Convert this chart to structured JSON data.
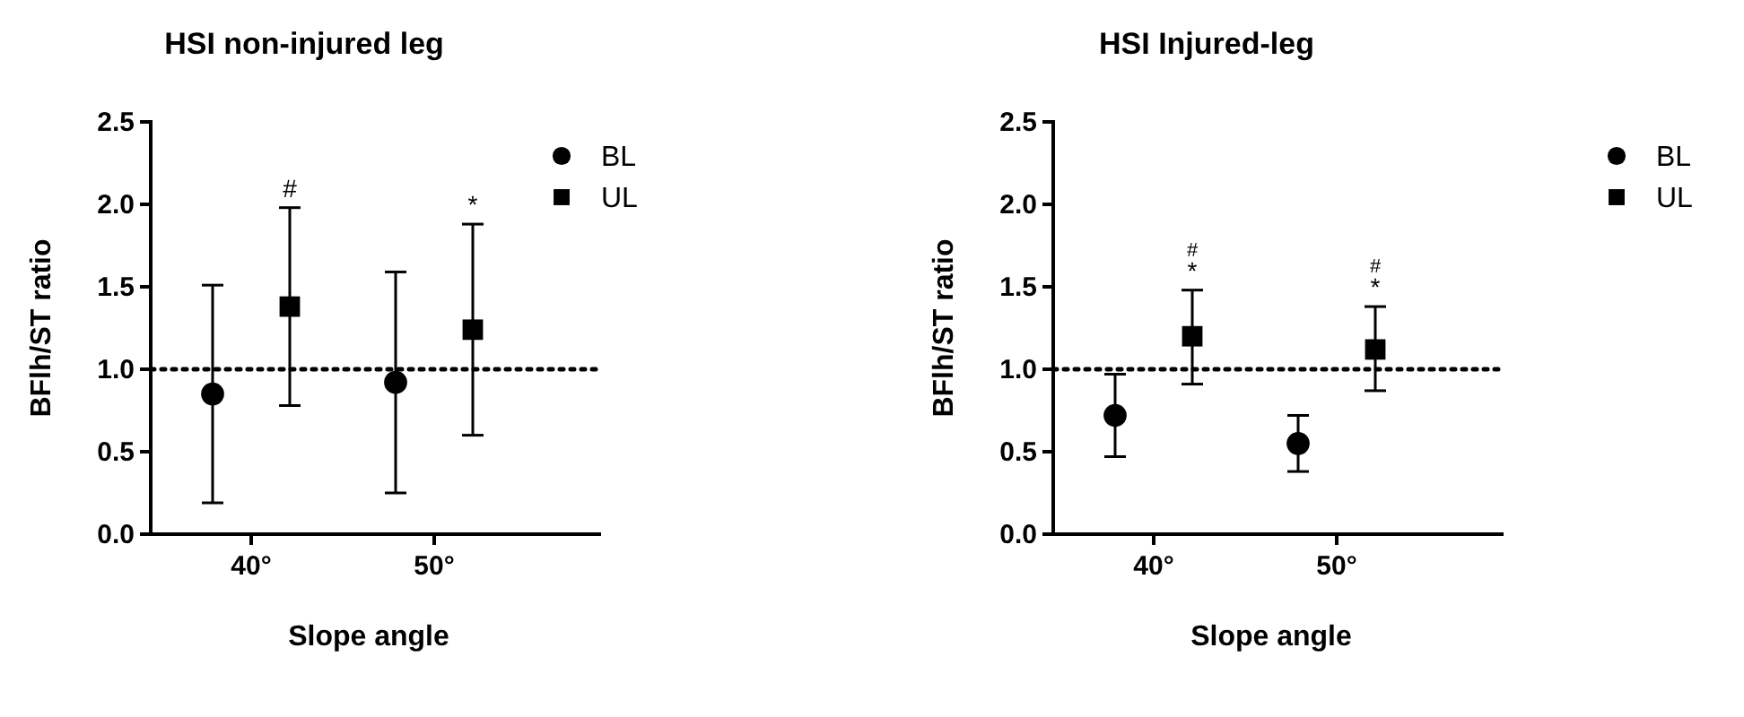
{
  "chart_data": [
    {
      "type": "scatter",
      "title": "HSI non-injured leg",
      "xlabel": "Slope angle",
      "ylabel": "BFlh/ST ratio",
      "categories": [
        "40°",
        "50°"
      ],
      "series": [
        {
          "name": "BL",
          "color": "#000000",
          "marker": "circle",
          "values": [
            0.85,
            0.92
          ],
          "errors": [
            [
              0.19,
              1.51
            ],
            [
              0.25,
              1.59
            ]
          ]
        },
        {
          "name": "UL",
          "color": "#000000",
          "marker": "square",
          "values": [
            1.38,
            1.24
          ],
          "errors": [
            [
              0.78,
              1.98
            ],
            [
              0.6,
              1.88
            ]
          ]
        }
      ],
      "ylim": [
        0,
        2.5
      ],
      "yticks": [
        {
          "value": 0,
          "label": "0.0"
        },
        0.5,
        {
          "value": 1,
          "label": "1.0"
        },
        1.5,
        {
          "value": 2,
          "label": "2.0"
        },
        2.5
      ],
      "ref_lines": [
        {
          "axis": "y",
          "value": 1,
          "line_style": "dotted",
          "color": "#000000"
        }
      ],
      "annotations": [
        "#",
        "*"
      ],
      "grid": false,
      "legend": "right"
    },
    {
      "type": "scatter",
      "title": "HSI Injured-leg",
      "xlabel": "Slope angle",
      "ylabel": "BFlh/ST ratio",
      "categories": [
        "40°",
        "50°"
      ],
      "series": [
        {
          "name": "BL",
          "color": "#000000",
          "marker": "circle",
          "values": [
            0.72,
            0.55
          ],
          "errors": [
            [
              0.47,
              0.97
            ],
            [
              0.38,
              0.72
            ]
          ]
        },
        {
          "name": "UL",
          "color": "#000000",
          "marker": "square",
          "values": [
            1.2,
            1.12
          ],
          "errors": [
            [
              0.91,
              1.48
            ],
            [
              0.87,
              1.38
            ]
          ]
        }
      ],
      "ylim": [
        0,
        2.5
      ],
      "yticks": [
        {
          "value": 0,
          "label": "0.0"
        },
        0.5,
        {
          "value": 1,
          "label": "1.0"
        },
        1.5,
        {
          "value": 2,
          "label": "2.0"
        },
        2.5
      ],
      "ref_lines": [
        {
          "axis": "y",
          "value": 1,
          "line_style": "dotted",
          "color": "#000000"
        }
      ],
      "annotations": [
        "*",
        "#",
        "*",
        "#"
      ],
      "grid": false,
      "legend": "right"
    }
  ]
}
